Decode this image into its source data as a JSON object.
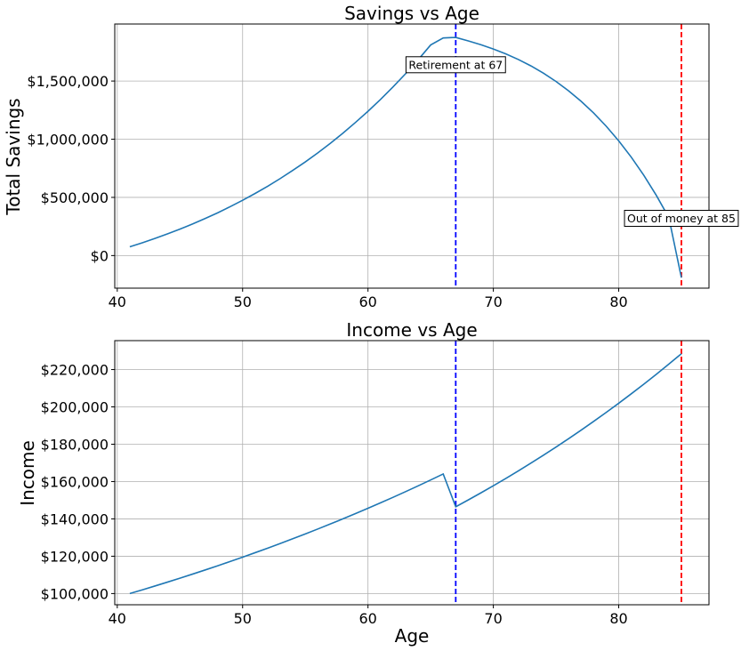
{
  "chart_data": [
    {
      "type": "line",
      "title": "Savings vs Age",
      "xlabel": "",
      "ylabel": "Total Savings",
      "xlim": [
        39.8,
        87.2
      ],
      "ylim": [
        -280000,
        1990000
      ],
      "x_ticks": [
        40,
        50,
        60,
        70,
        80
      ],
      "x_tick_labels": [
        "40",
        "50",
        "60",
        "70",
        "80"
      ],
      "y_ticks": [
        0,
        500000,
        1000000,
        1500000
      ],
      "y_tick_labels": [
        "$0",
        "$500,000",
        "$1,000,000",
        "$1,500,000"
      ],
      "grid": true,
      "series": [
        {
          "color": "#1f77b4",
          "x": [
            41,
            42,
            43,
            44,
            45,
            46,
            47,
            48,
            49,
            50,
            51,
            52,
            53,
            54,
            55,
            56,
            57,
            58,
            59,
            60,
            61,
            62,
            63,
            64,
            65,
            66,
            67,
            68,
            69,
            70,
            71,
            72,
            73,
            74,
            75,
            76,
            77,
            78,
            79,
            80,
            81,
            82,
            83,
            84,
            85
          ],
          "y": [
            75000,
            110000,
            147000,
            186000,
            227000,
            271000,
            318000,
            367000,
            420000,
            475000,
            534000,
            596000,
            662000,
            732000,
            805000,
            883000,
            965000,
            1052000,
            1144000,
            1240000,
            1342000,
            1450000,
            1563000,
            1683000,
            1810000,
            1870000,
            1875000,
            1845000,
            1812000,
            1775000,
            1733000,
            1685000,
            1630000,
            1567000,
            1496000,
            1416000,
            1326000,
            1225000,
            1112000,
            986000,
            846000,
            690000,
            517000,
            326000,
            -190000
          ]
        }
      ],
      "vlines": [
        {
          "x": 67,
          "color": "#0000ff",
          "style": "dashed"
        },
        {
          "x": 85,
          "color": "#ff0000",
          "style": "dashed"
        }
      ],
      "annotations": [
        {
          "text": "Retirement at 67",
          "x": 67,
          "y": 1640000
        },
        {
          "text": "Out of money at 85",
          "x": 85,
          "y": 320000
        }
      ]
    },
    {
      "type": "line",
      "title": "Income vs Age",
      "xlabel": "Age",
      "ylabel": "Income",
      "xlim": [
        39.8,
        87.2
      ],
      "ylim": [
        94000,
        235500
      ],
      "x_ticks": [
        40,
        50,
        60,
        70,
        80
      ],
      "x_tick_labels": [
        "40",
        "50",
        "60",
        "70",
        "80"
      ],
      "y_ticks": [
        100000,
        120000,
        140000,
        160000,
        180000,
        200000,
        220000
      ],
      "y_tick_labels": [
        "$100,000",
        "$120,000",
        "$140,000",
        "$160,000",
        "$180,000",
        "$200,000",
        "$220,000"
      ],
      "grid": true,
      "series": [
        {
          "color": "#1f77b4",
          "x": [
            41,
            42,
            43,
            44,
            45,
            46,
            47,
            48,
            49,
            50,
            51,
            52,
            53,
            54,
            55,
            56,
            57,
            58,
            59,
            60,
            61,
            62,
            63,
            64,
            65,
            66,
            67,
            68,
            69,
            70,
            71,
            72,
            73,
            74,
            75,
            76,
            77,
            78,
            79,
            80,
            81,
            82,
            83,
            84,
            85
          ],
          "y": [
            100000,
            102000,
            104040,
            106121,
            108243,
            110408,
            112616,
            114869,
            117166,
            119509,
            121899,
            124337,
            126824,
            129361,
            131948,
            134587,
            137279,
            140024,
            142825,
            145681,
            148595,
            151567,
            154598,
            157690,
            160844,
            164061,
            146500,
            150162,
            153916,
            157764,
            161708,
            165751,
            169895,
            174142,
            178496,
            182958,
            187532,
            192221,
            197026,
            201952,
            207001,
            212176,
            217480,
            222917,
            228490
          ]
        }
      ],
      "vlines": [
        {
          "x": 67,
          "color": "#0000ff",
          "style": "dashed"
        },
        {
          "x": 85,
          "color": "#ff0000",
          "style": "dashed"
        }
      ],
      "annotations": []
    }
  ]
}
